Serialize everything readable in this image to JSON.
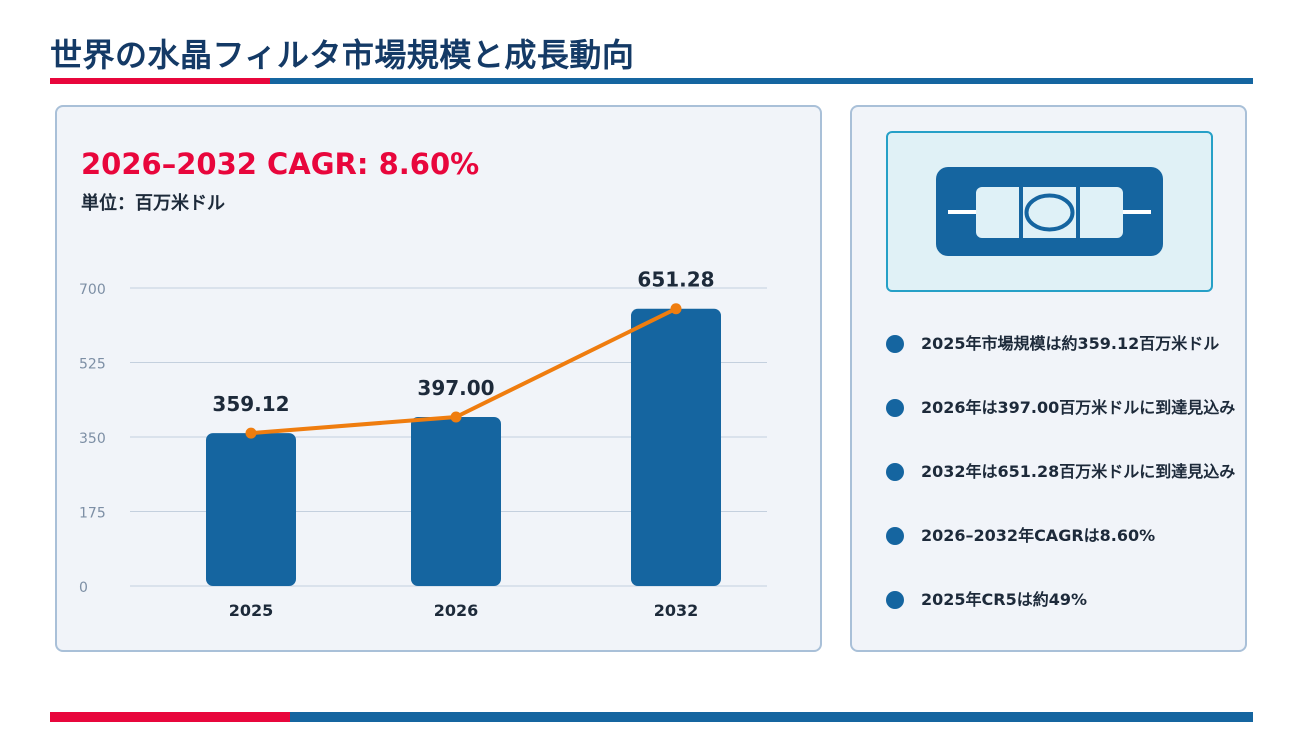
{
  "page": {
    "title": "世界の水晶フィルタ市場規模と成長動向"
  },
  "chart_panel": {
    "cagr_text": "2026–2032 CAGR: 8.60%",
    "unit_text": "単位：百万米ドル"
  },
  "info_panel": {
    "icon": "crystal-filter-icon",
    "bullets": [
      "2025年市場規模は約359.12百万米ドル",
      "2026年は397.00百万米ドルに到達見込み",
      "2032年は651.28百万米ドルに到達見込み",
      "2026–2032年CAGRは8.60%",
      "2025年CR5は約49%"
    ]
  },
  "colors": {
    "title": "#143a66",
    "accent_red": "#e8063c",
    "bar_blue": "#1565a0",
    "line_orange": "#ef7d0f",
    "panel_bg": "#f1f4f9"
  },
  "chart_data": {
    "type": "bar",
    "categories": [
      "2025",
      "2026",
      "2032"
    ],
    "values": [
      359.12,
      397.0,
      651.28
    ],
    "data_labels": [
      "359.12",
      "397.00",
      "651.28"
    ],
    "ylim": [
      0,
      700
    ],
    "yticks": [
      0,
      175,
      350,
      525,
      700
    ],
    "grid": true,
    "overlay_line": {
      "type": "line",
      "values": [
        359.12,
        397.0,
        651.28
      ]
    }
  }
}
